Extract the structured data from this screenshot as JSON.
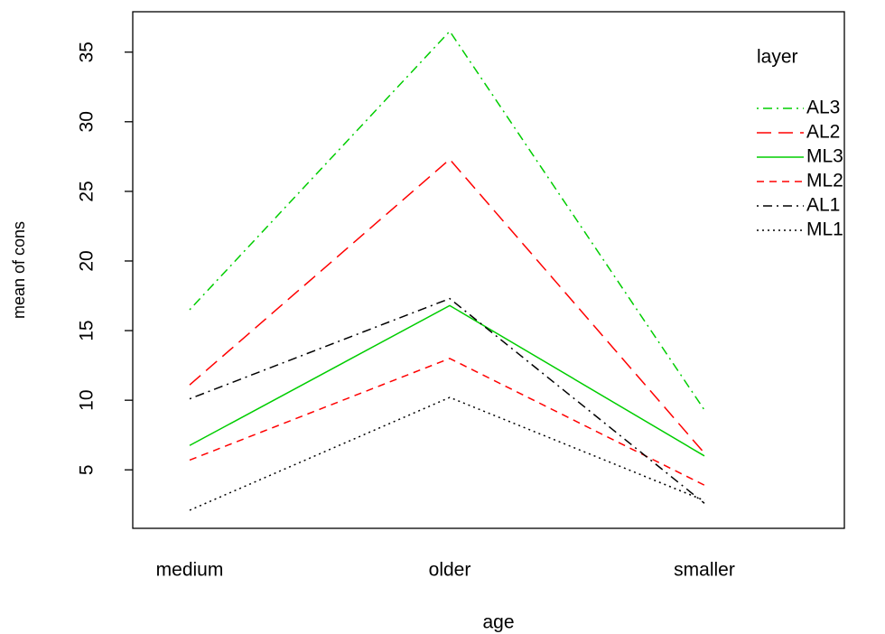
{
  "chart_data": {
    "type": "line",
    "x_label": "age",
    "y_label": "mean of cons",
    "categories": [
      "medium",
      "older",
      "smaller"
    ],
    "ylim": [
      0.8,
      37.9
    ],
    "yticks": [
      5,
      10,
      15,
      20,
      25,
      30,
      35
    ],
    "legend_title": "layer",
    "legend": "right",
    "series": [
      {
        "name": "AL3",
        "color": "#00cd00",
        "dash": "dotdash",
        "values": [
          16.5,
          36.5,
          9.3
        ]
      },
      {
        "name": "AL2",
        "color": "#ff0000",
        "dash": "longdash",
        "values": [
          11.1,
          27.3,
          6.2
        ]
      },
      {
        "name": "ML3",
        "color": "#00cd00",
        "dash": "solid",
        "values": [
          6.75,
          16.8,
          6.0
        ]
      },
      {
        "name": "ML2",
        "color": "#ff0000",
        "dash": "dashed",
        "values": [
          5.7,
          13.0,
          3.9
        ]
      },
      {
        "name": "AL1",
        "color": "#000000",
        "dash": "dotdash",
        "values": [
          10.1,
          17.3,
          2.6
        ]
      },
      {
        "name": "ML1",
        "color": "#000000",
        "dash": "dotted",
        "values": [
          2.1,
          10.2,
          2.8
        ]
      }
    ]
  }
}
